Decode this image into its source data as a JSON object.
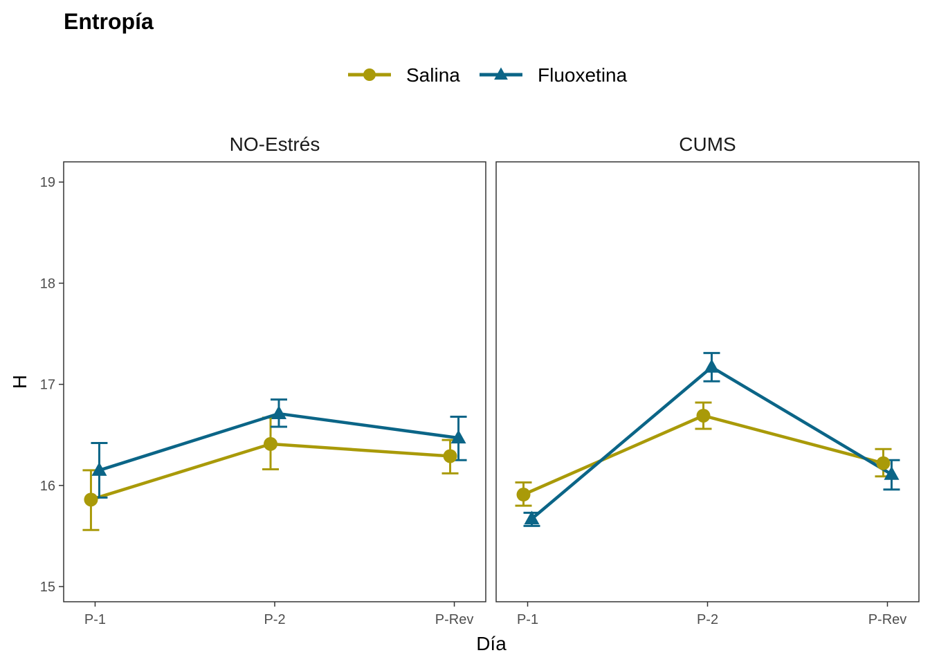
{
  "chart_data": {
    "type": "line",
    "title": "Entropía",
    "xlabel": "Día",
    "ylabel": "H",
    "ylim": [
      14.85,
      19.2
    ],
    "y_ticks": [
      "15",
      "16",
      "17",
      "18",
      "19"
    ],
    "categories": [
      "P-1",
      "P-2",
      "P-Rev"
    ],
    "legend_position": "top",
    "grid": false,
    "series_styles": [
      {
        "name": "Salina",
        "color": "#A99A09",
        "marker": "circle"
      },
      {
        "name": "Fluoxetina",
        "color": "#0B6587",
        "marker": "triangle"
      }
    ],
    "panels": [
      {
        "label": "NO-Estrés",
        "series": [
          {
            "name": "Salina",
            "values": [
              15.86,
              16.41,
              16.29
            ],
            "err_low": [
              15.56,
              16.16,
              16.12
            ],
            "err_high": [
              16.15,
              16.67,
              16.45
            ]
          },
          {
            "name": "Fluoxetina",
            "values": [
              16.15,
              16.71,
              16.47
            ],
            "err_low": [
              15.88,
              16.58,
              16.25
            ],
            "err_high": [
              16.42,
              16.85,
              16.68
            ]
          }
        ]
      },
      {
        "label": "CUMS",
        "series": [
          {
            "name": "Salina",
            "values": [
              15.91,
              16.69,
              16.22
            ],
            "err_low": [
              15.8,
              16.56,
              16.09
            ],
            "err_high": [
              16.03,
              16.82,
              16.36
            ]
          },
          {
            "name": "Fluoxetina",
            "values": [
              15.67,
              17.17,
              16.11
            ],
            "err_low": [
              15.6,
              17.03,
              15.96
            ],
            "err_high": [
              15.73,
              17.31,
              16.25
            ]
          }
        ]
      }
    ]
  }
}
